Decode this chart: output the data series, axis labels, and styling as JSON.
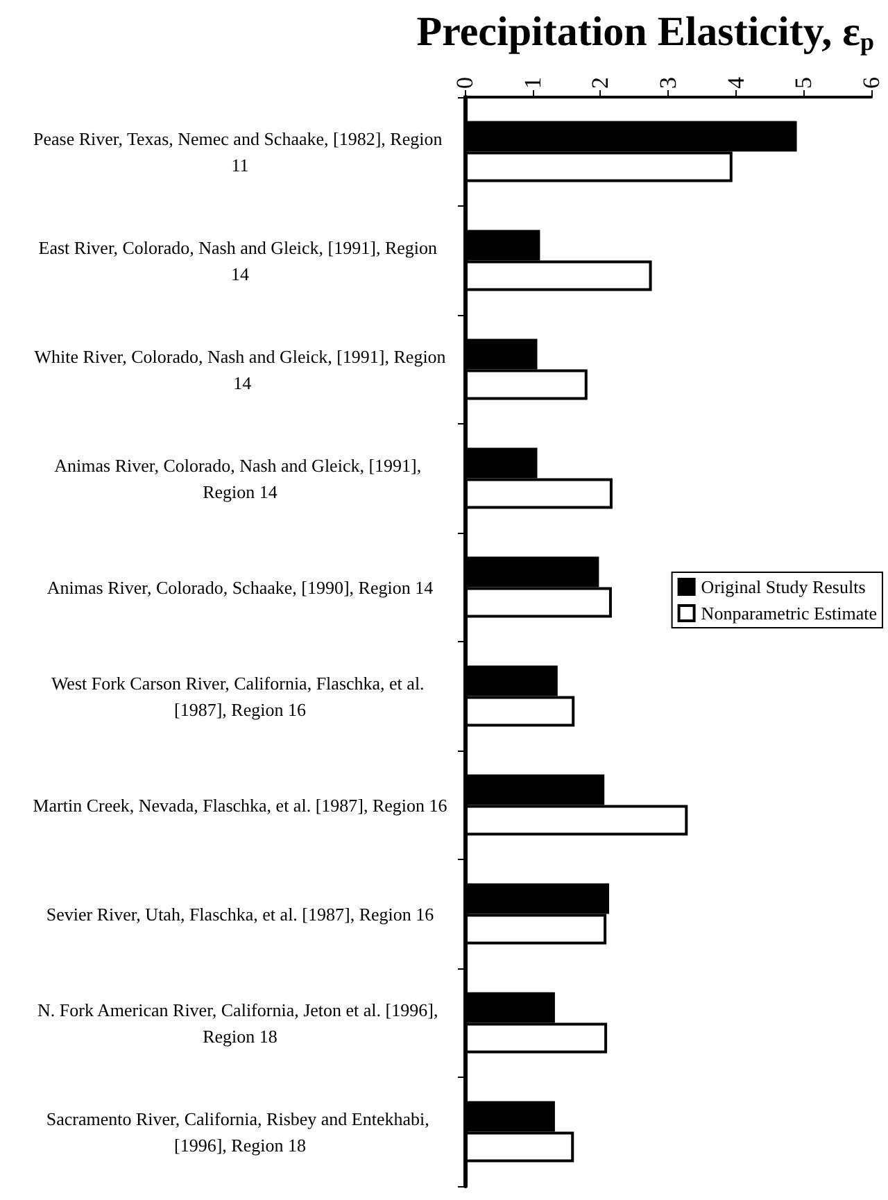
{
  "chart_data": {
    "type": "bar",
    "orientation": "horizontal",
    "xlabel": "Precipitation Elasticity, ε$_{p}$",
    "categories": [
      "Pease River, Texas, Nemec and Schaake, [1982], Region 11",
      "East River, Colorado, Nash and Gleick, [1991], Region 14",
      "White River, Colorado, Nash and Gleick, [1991], Region 14",
      "Animas River, Colorado, Nash and Gleick, [1991], Region 14",
      "Animas River, Colorado, Schaake, [1990], Region 14",
      "West Fork Carson River, California, Flaschka, et al. [1987], Region 16",
      "Martin Creek, Nevada, Flaschka, et al. [1987], Region 16",
      "Sevier River, Utah, Flaschka, et al. [1987], Region 16",
      "N. Fork American River, California, Jeton et al. [1996], Region 18",
      "Sacramento River, California, Risbey and Entekhabi, [1996], Region 18"
    ],
    "series": [
      {
        "name": "Original Study Results",
        "color": "#000000",
        "values": [
          4.9,
          1.11,
          1.07,
          1.07,
          1.98,
          1.37,
          2.06,
          2.13,
          1.33,
          1.33
        ]
      },
      {
        "name": "Nonparametric Estimate",
        "color": "#ffffff",
        "values": [
          3.95,
          2.76,
          1.81,
          2.18,
          2.17,
          1.62,
          3.29,
          2.09,
          2.1,
          1.61
        ]
      }
    ],
    "xlim": [
      0,
      6
    ],
    "xticks": [
      0,
      1,
      2,
      3,
      4,
      5,
      6
    ],
    "grid": false,
    "legend": "right"
  }
}
